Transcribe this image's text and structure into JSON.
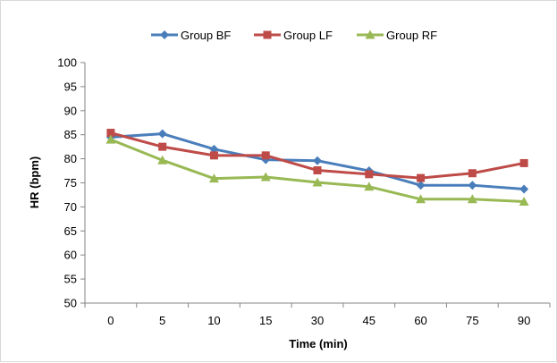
{
  "chart_data": {
    "type": "line",
    "title": "",
    "xlabel": "Time (min)",
    "ylabel": "HR (bpm)",
    "categories": [
      "0",
      "5",
      "10",
      "15",
      "30",
      "45",
      "60",
      "75",
      "90"
    ],
    "ylim": [
      50,
      100
    ],
    "yticks": [
      50,
      55,
      60,
      65,
      70,
      75,
      80,
      85,
      90,
      95,
      100
    ],
    "grid": false,
    "legend_position": "top",
    "series": [
      {
        "name": "Group BF",
        "color": "#4a7ebb",
        "marker": "diamond",
        "values": [
          84.5,
          85.2,
          82.0,
          79.8,
          79.6,
          77.5,
          74.5,
          74.5,
          73.7
        ]
      },
      {
        "name": "Group LF",
        "color": "#be4b48",
        "marker": "square",
        "values": [
          85.4,
          82.5,
          80.7,
          80.7,
          77.6,
          76.8,
          76.0,
          77.0,
          79.1
        ]
      },
      {
        "name": "Group RF",
        "color": "#98b954",
        "marker": "triangle",
        "values": [
          84.0,
          79.7,
          75.9,
          76.2,
          75.1,
          74.2,
          71.6,
          71.6,
          71.1
        ]
      }
    ]
  }
}
